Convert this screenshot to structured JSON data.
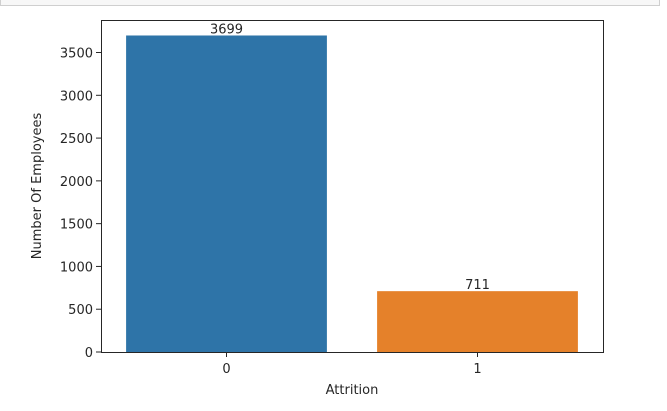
{
  "chart_data": {
    "type": "bar",
    "categories": [
      "0",
      "1"
    ],
    "values": [
      3699,
      711
    ],
    "data_labels": [
      "3699",
      "711"
    ],
    "colors": [
      "#2e74a8",
      "#e5812a"
    ],
    "title": "",
    "xlabel": "Attrition",
    "ylabel": "Number Of Employees",
    "ylim": [
      0,
      3880
    ],
    "yticks": [
      0,
      500,
      1000,
      1500,
      2000,
      2500,
      3000,
      3500
    ],
    "ytick_labels": [
      "0",
      "500",
      "1000",
      "1500",
      "2000",
      "2500",
      "3000",
      "3500"
    ],
    "grid": false,
    "legend": "none"
  }
}
